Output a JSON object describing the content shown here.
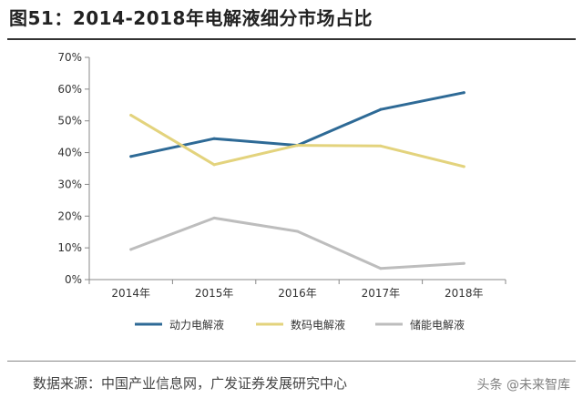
{
  "page_title": "图51：2014-2018年电解液细分市场占比",
  "source": "数据来源：中国产业信息网，广发证券发展研究中心",
  "watermark": "头条 @未来智库",
  "chart_data": {
    "type": "line",
    "title": "图51：2014-2018年电解液细分市场占比",
    "xlabel": "",
    "ylabel": "",
    "categories": [
      "2014年",
      "2015年",
      "2016年",
      "2017年",
      "2018年"
    ],
    "ylim": [
      0,
      70
    ],
    "yticks": [
      0,
      10,
      20,
      30,
      40,
      50,
      60,
      70
    ],
    "ytick_labels": [
      "0%",
      "10%",
      "20%",
      "30%",
      "40%",
      "50%",
      "60%",
      "70%"
    ],
    "grid": false,
    "legend_position": "bottom",
    "series": [
      {
        "name": "动力电解液",
        "color": "#2e6a96",
        "values": [
          38.8,
          44.4,
          42.3,
          53.6,
          58.9
        ]
      },
      {
        "name": "数码电解液",
        "color": "#e3d37d",
        "values": [
          51.8,
          36.2,
          42.3,
          42.1,
          35.6
        ]
      },
      {
        "name": "储能电解液",
        "color": "#bdbdbd",
        "values": [
          9.5,
          19.4,
          15.2,
          3.5,
          5.1
        ]
      }
    ]
  }
}
